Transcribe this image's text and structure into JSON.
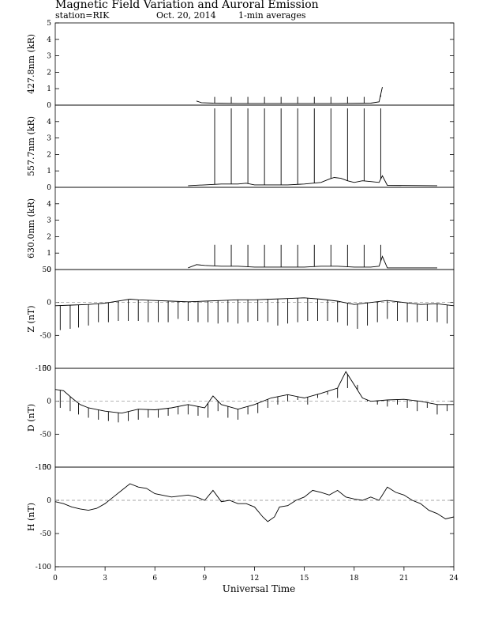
{
  "header": {
    "title": "Magnetic Field Variation and Auroral Emission",
    "station": "station=RIK",
    "date": "Oct. 20, 2014",
    "averaging": "1-min averages"
  },
  "x_axis": {
    "label": "Universal Time",
    "ticks": [
      0,
      3,
      6,
      9,
      12,
      15,
      18,
      21,
      24
    ],
    "range": [
      0,
      24
    ]
  },
  "chart_data": [
    {
      "type": "line",
      "ylabel": "427.8nm (kR)",
      "ylim": [
        0,
        5
      ],
      "yticks": [
        0,
        1,
        2,
        3,
        4,
        5
      ],
      "zero_line": false,
      "baseline": {
        "x": [
          8.5,
          8.8,
          9.5,
          11,
          13,
          15,
          17,
          19,
          19.5,
          19.7
        ],
        "y": [
          0.25,
          0.15,
          0.12,
          0.1,
          0.1,
          0.1,
          0.1,
          0.12,
          0.2,
          1.1
        ]
      },
      "spikes": {
        "x": [
          9.6,
          10.6,
          11.6,
          12.6,
          13.6,
          14.6,
          15.6,
          16.6,
          17.6,
          18.6,
          19.6
        ],
        "y": [
          0.5,
          0.5,
          0.5,
          0.5,
          0.5,
          0.5,
          0.5,
          0.5,
          0.5,
          0.5,
          0.5
        ]
      }
    },
    {
      "type": "line",
      "ylabel": "557.7nm (kR)",
      "ylim": [
        0,
        5
      ],
      "yticks": [
        0,
        1,
        2,
        3,
        4
      ],
      "zero_line": false,
      "baseline": {
        "x": [
          8,
          9,
          10,
          11,
          11.5,
          12,
          13,
          14,
          15,
          16,
          16.5,
          16.8,
          17.2,
          17.6,
          18,
          18.5,
          19,
          19.5,
          19.7,
          20,
          23
        ],
        "y": [
          0.1,
          0.15,
          0.2,
          0.2,
          0.25,
          0.15,
          0.15,
          0.15,
          0.2,
          0.3,
          0.5,
          0.6,
          0.55,
          0.4,
          0.3,
          0.4,
          0.35,
          0.3,
          0.7,
          0.12,
          0.1
        ]
      },
      "spikes": {
        "x": [
          9.6,
          10.6,
          11.6,
          12.6,
          13.6,
          14.6,
          15.6,
          16.6,
          17.6,
          18.6,
          19.6
        ],
        "y": [
          4.8,
          4.8,
          4.8,
          4.8,
          4.8,
          4.8,
          4.8,
          4.8,
          4.8,
          4.8,
          4.8
        ]
      }
    },
    {
      "type": "line",
      "ylabel": "630.0nm (kR)",
      "ylim": [
        0,
        5
      ],
      "yticks": [
        0,
        1,
        2,
        3,
        4
      ],
      "zero_line": false,
      "baseline": {
        "x": [
          8,
          8.5,
          9,
          10,
          11,
          12,
          13,
          14,
          15,
          16,
          17,
          18,
          19,
          19.5,
          19.7,
          20,
          23
        ],
        "y": [
          0.1,
          0.3,
          0.25,
          0.2,
          0.2,
          0.15,
          0.15,
          0.15,
          0.15,
          0.2,
          0.2,
          0.15,
          0.15,
          0.2,
          0.8,
          0.1,
          0.1
        ]
      },
      "spikes": {
        "x": [
          9.6,
          10.6,
          11.6,
          12.6,
          13.6,
          14.6,
          15.6,
          16.6,
          17.6,
          18.6,
          19.6
        ],
        "y": [
          1.5,
          1.5,
          1.5,
          1.5,
          1.5,
          1.5,
          1.5,
          1.5,
          1.5,
          1.5,
          1.5
        ]
      }
    },
    {
      "type": "line",
      "ylabel": "Z (nT)",
      "ylim": [
        -100,
        50
      ],
      "yticks": [
        -100,
        -50,
        0,
        50
      ],
      "zero_line": true,
      "baseline": {
        "x": [
          0,
          1,
          2,
          3,
          4,
          4.5,
          5,
          6,
          7,
          8,
          9,
          10,
          11,
          12,
          13,
          14,
          15,
          16,
          17,
          18,
          19,
          20,
          21,
          22,
          23,
          24
        ],
        "y": [
          -5,
          -4,
          -3,
          -1,
          3,
          5,
          4,
          3,
          2,
          1,
          2,
          3,
          4,
          4,
          5,
          6,
          7,
          5,
          2,
          -3,
          0,
          3,
          0,
          -3,
          -2,
          -5
        ]
      },
      "spikes": {
        "x": [
          0.3,
          0.9,
          1.4,
          2.0,
          2.6,
          3.2,
          3.8,
          4.4,
          5.0,
          5.6,
          6.2,
          6.8,
          7.4,
          8.0,
          8.6,
          9.2,
          9.8,
          10.4,
          11.0,
          11.6,
          12.2,
          12.8,
          13.4,
          14.0,
          14.6,
          15.2,
          15.8,
          16.4,
          17.0,
          17.6,
          18.2,
          18.8,
          19.4,
          20.0,
          20.6,
          21.2,
          21.8,
          22.4,
          23.0,
          23.6
        ],
        "y": [
          -42,
          -40,
          -38,
          -35,
          -30,
          -30,
          -28,
          -28,
          -28,
          -30,
          -30,
          -30,
          -25,
          -28,
          -30,
          -30,
          -32,
          -30,
          -32,
          -30,
          -28,
          -30,
          -35,
          -32,
          -30,
          -28,
          -28,
          -28,
          -30,
          -35,
          -40,
          -35,
          -30,
          -25,
          -28,
          -30,
          -30,
          -28,
          -30,
          -32
        ]
      }
    },
    {
      "type": "line",
      "ylabel": "D (nT)",
      "ylim": [
        -100,
        50
      ],
      "yticks": [
        -100,
        -50,
        0,
        50
      ],
      "zero_line": true,
      "baseline": {
        "x": [
          0,
          0.5,
          1,
          1.5,
          2,
          3,
          4,
          4.5,
          5,
          6,
          7,
          8,
          9,
          9.5,
          10,
          11,
          12,
          13,
          14,
          15,
          16,
          17,
          17.5,
          18,
          18.5,
          19,
          20,
          21,
          22,
          23,
          24
        ],
        "y": [
          18,
          16,
          5,
          -5,
          -10,
          -15,
          -18,
          -15,
          -12,
          -13,
          -10,
          -5,
          -10,
          8,
          -5,
          -12,
          -5,
          5,
          10,
          5,
          12,
          20,
          45,
          25,
          5,
          0,
          2,
          3,
          0,
          -5,
          -5
        ]
      },
      "spikes": {
        "x": [
          0.3,
          0.9,
          1.4,
          2.0,
          2.6,
          3.2,
          3.8,
          4.4,
          5.0,
          5.6,
          6.2,
          6.8,
          7.4,
          8.0,
          8.6,
          9.2,
          9.8,
          10.4,
          11.0,
          11.6,
          12.2,
          12.8,
          13.4,
          14.0,
          14.6,
          15.2,
          15.8,
          16.4,
          17.0,
          17.6,
          18.2,
          18.8,
          19.4,
          20.0,
          20.6,
          21.2,
          21.8,
          22.4,
          23.0,
          23.6
        ],
        "y": [
          -10,
          -15,
          -20,
          -25,
          -28,
          -30,
          -32,
          -30,
          -28,
          -25,
          -25,
          -22,
          -20,
          -20,
          -22,
          -25,
          -15,
          -25,
          -28,
          -20,
          -18,
          -10,
          -5,
          0,
          2,
          -5,
          5,
          10,
          5,
          20,
          25,
          0,
          -5,
          -8,
          -5,
          -10,
          -15,
          -10,
          -20,
          -15
        ]
      }
    },
    {
      "type": "line",
      "ylabel": "H (nT)",
      "ylim": [
        -100,
        50
      ],
      "yticks": [
        -100,
        -50,
        0,
        50
      ],
      "zero_line": true,
      "baseline": {
        "x": [
          0,
          0.5,
          1,
          1.5,
          2,
          2.5,
          3,
          3.5,
          4,
          4.5,
          5,
          5.5,
          6,
          7,
          8,
          8.5,
          9,
          9.5,
          10,
          10.5,
          11,
          11.5,
          12,
          12.5,
          12.8,
          13.2,
          13.5,
          14,
          14.5,
          15,
          15.5,
          16,
          16.5,
          17,
          17.5,
          18,
          18.5,
          19,
          19.5,
          20,
          20.5,
          21,
          21.5,
          22,
          22.5,
          23,
          23.5,
          24
        ],
        "y": [
          -2,
          -5,
          -10,
          -13,
          -15,
          -12,
          -5,
          5,
          15,
          25,
          20,
          18,
          10,
          5,
          8,
          5,
          0,
          15,
          -2,
          0,
          -5,
          -5,
          -10,
          -25,
          -32,
          -25,
          -10,
          -8,
          0,
          5,
          15,
          12,
          8,
          15,
          5,
          2,
          0,
          5,
          0,
          20,
          12,
          8,
          0,
          -5,
          -15,
          -20,
          -28,
          -25
        ]
      },
      "spikes": {
        "x": [],
        "y": []
      }
    }
  ]
}
